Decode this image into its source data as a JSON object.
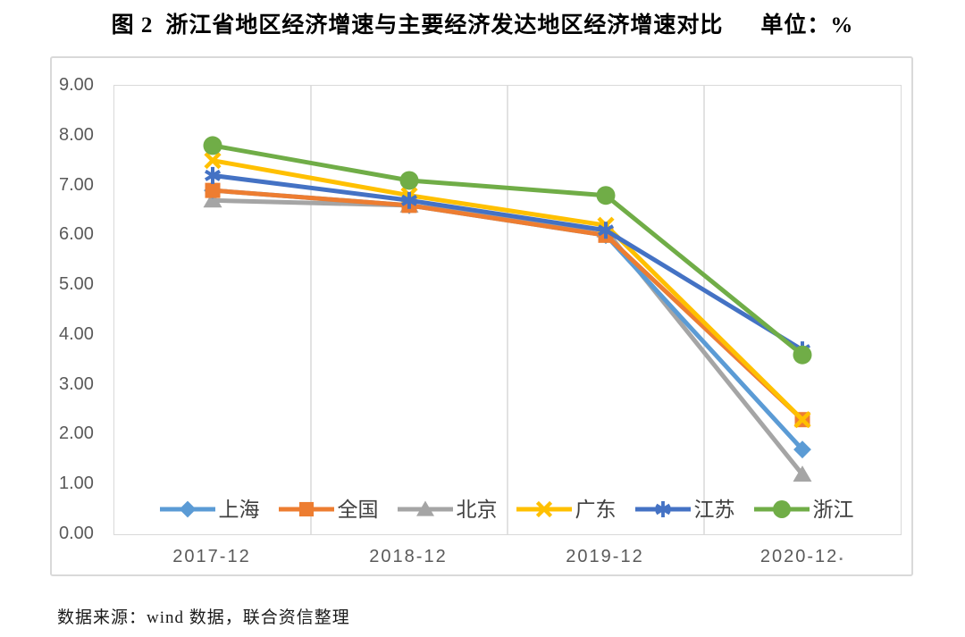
{
  "header": {
    "figure_label": "图 2",
    "title": "浙江省地区经济增速与主要经济发达地区经济增速对比",
    "unit_label": "单位：%"
  },
  "footer": {
    "source_note": "数据来源：wind 数据，联合资信整理"
  },
  "chart_data": {
    "type": "line",
    "title": "图 2 浙江省地区经济增速与主要经济发达地区经济增速对比 单位：%",
    "categories": [
      "2017-12",
      "2018-12",
      "2019-12",
      "2020-12"
    ],
    "series": [
      {
        "name": "上海",
        "color": "#5B9BD5",
        "marker": "diamond",
        "values": [
          6.9,
          6.6,
          6.0,
          1.7
        ]
      },
      {
        "name": "全国",
        "color": "#ED7D31",
        "marker": "square",
        "values": [
          6.9,
          6.6,
          6.0,
          2.3
        ]
      },
      {
        "name": "北京",
        "color": "#A5A5A5",
        "marker": "triangle",
        "values": [
          6.7,
          6.6,
          6.1,
          1.2
        ]
      },
      {
        "name": "广东",
        "color": "#FFC000",
        "marker": "x",
        "values": [
          7.5,
          6.8,
          6.2,
          2.3
        ]
      },
      {
        "name": "江苏",
        "color": "#4472C4",
        "marker": "asterisk",
        "values": [
          7.2,
          6.7,
          6.1,
          3.7
        ]
      },
      {
        "name": "浙江",
        "color": "#70AD47",
        "marker": "circle",
        "values": [
          7.8,
          7.1,
          6.8,
          3.6
        ]
      }
    ],
    "draw_order": [
      2,
      0,
      1,
      3,
      4,
      5
    ],
    "xlabel": "",
    "ylabel": "",
    "ylim": [
      0,
      9
    ],
    "ytick_labels": [
      "0.00",
      "1.00",
      "2.00",
      "3.00",
      "4.00",
      "5.00",
      "6.00",
      "7.00",
      "8.00",
      "9.00"
    ],
    "grid": "vertical-between-categories",
    "grid_color": "#D9D9D9",
    "axis_text_color": "#595959",
    "legend_position": "bottom-inside",
    "x_axis_end_mark": "▪"
  }
}
